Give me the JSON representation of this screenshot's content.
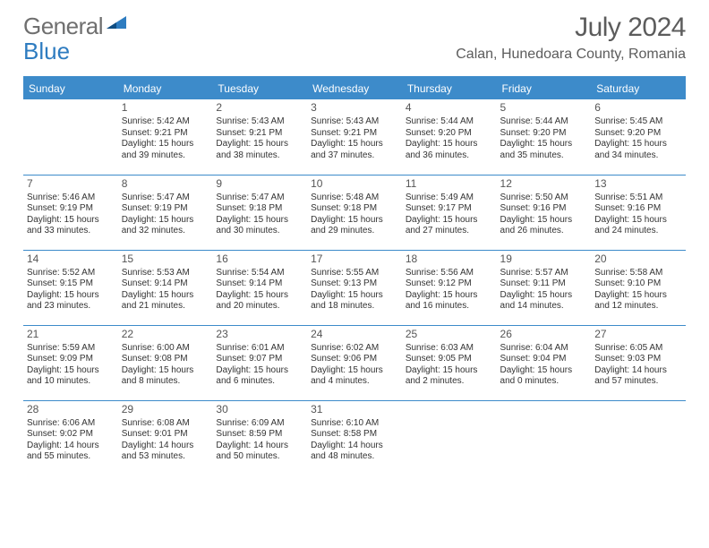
{
  "brand": {
    "part1": "General",
    "part2": "Blue"
  },
  "title": "July 2024",
  "location": "Calan, Hunedoara County, Romania",
  "colors": {
    "accent": "#3d8bca",
    "text": "#333333",
    "muted": "#6f6f6f"
  },
  "daynames": [
    "Sunday",
    "Monday",
    "Tuesday",
    "Wednesday",
    "Thursday",
    "Friday",
    "Saturday"
  ],
  "weeks": [
    [
      null,
      {
        "n": "1",
        "sr": "Sunrise: 5:42 AM",
        "ss": "Sunset: 9:21 PM",
        "d1": "Daylight: 15 hours",
        "d2": "and 39 minutes."
      },
      {
        "n": "2",
        "sr": "Sunrise: 5:43 AM",
        "ss": "Sunset: 9:21 PM",
        "d1": "Daylight: 15 hours",
        "d2": "and 38 minutes."
      },
      {
        "n": "3",
        "sr": "Sunrise: 5:43 AM",
        "ss": "Sunset: 9:21 PM",
        "d1": "Daylight: 15 hours",
        "d2": "and 37 minutes."
      },
      {
        "n": "4",
        "sr": "Sunrise: 5:44 AM",
        "ss": "Sunset: 9:20 PM",
        "d1": "Daylight: 15 hours",
        "d2": "and 36 minutes."
      },
      {
        "n": "5",
        "sr": "Sunrise: 5:44 AM",
        "ss": "Sunset: 9:20 PM",
        "d1": "Daylight: 15 hours",
        "d2": "and 35 minutes."
      },
      {
        "n": "6",
        "sr": "Sunrise: 5:45 AM",
        "ss": "Sunset: 9:20 PM",
        "d1": "Daylight: 15 hours",
        "d2": "and 34 minutes."
      }
    ],
    [
      {
        "n": "7",
        "sr": "Sunrise: 5:46 AM",
        "ss": "Sunset: 9:19 PM",
        "d1": "Daylight: 15 hours",
        "d2": "and 33 minutes."
      },
      {
        "n": "8",
        "sr": "Sunrise: 5:47 AM",
        "ss": "Sunset: 9:19 PM",
        "d1": "Daylight: 15 hours",
        "d2": "and 32 minutes."
      },
      {
        "n": "9",
        "sr": "Sunrise: 5:47 AM",
        "ss": "Sunset: 9:18 PM",
        "d1": "Daylight: 15 hours",
        "d2": "and 30 minutes."
      },
      {
        "n": "10",
        "sr": "Sunrise: 5:48 AM",
        "ss": "Sunset: 9:18 PM",
        "d1": "Daylight: 15 hours",
        "d2": "and 29 minutes."
      },
      {
        "n": "11",
        "sr": "Sunrise: 5:49 AM",
        "ss": "Sunset: 9:17 PM",
        "d1": "Daylight: 15 hours",
        "d2": "and 27 minutes."
      },
      {
        "n": "12",
        "sr": "Sunrise: 5:50 AM",
        "ss": "Sunset: 9:16 PM",
        "d1": "Daylight: 15 hours",
        "d2": "and 26 minutes."
      },
      {
        "n": "13",
        "sr": "Sunrise: 5:51 AM",
        "ss": "Sunset: 9:16 PM",
        "d1": "Daylight: 15 hours",
        "d2": "and 24 minutes."
      }
    ],
    [
      {
        "n": "14",
        "sr": "Sunrise: 5:52 AM",
        "ss": "Sunset: 9:15 PM",
        "d1": "Daylight: 15 hours",
        "d2": "and 23 minutes."
      },
      {
        "n": "15",
        "sr": "Sunrise: 5:53 AM",
        "ss": "Sunset: 9:14 PM",
        "d1": "Daylight: 15 hours",
        "d2": "and 21 minutes."
      },
      {
        "n": "16",
        "sr": "Sunrise: 5:54 AM",
        "ss": "Sunset: 9:14 PM",
        "d1": "Daylight: 15 hours",
        "d2": "and 20 minutes."
      },
      {
        "n": "17",
        "sr": "Sunrise: 5:55 AM",
        "ss": "Sunset: 9:13 PM",
        "d1": "Daylight: 15 hours",
        "d2": "and 18 minutes."
      },
      {
        "n": "18",
        "sr": "Sunrise: 5:56 AM",
        "ss": "Sunset: 9:12 PM",
        "d1": "Daylight: 15 hours",
        "d2": "and 16 minutes."
      },
      {
        "n": "19",
        "sr": "Sunrise: 5:57 AM",
        "ss": "Sunset: 9:11 PM",
        "d1": "Daylight: 15 hours",
        "d2": "and 14 minutes."
      },
      {
        "n": "20",
        "sr": "Sunrise: 5:58 AM",
        "ss": "Sunset: 9:10 PM",
        "d1": "Daylight: 15 hours",
        "d2": "and 12 minutes."
      }
    ],
    [
      {
        "n": "21",
        "sr": "Sunrise: 5:59 AM",
        "ss": "Sunset: 9:09 PM",
        "d1": "Daylight: 15 hours",
        "d2": "and 10 minutes."
      },
      {
        "n": "22",
        "sr": "Sunrise: 6:00 AM",
        "ss": "Sunset: 9:08 PM",
        "d1": "Daylight: 15 hours",
        "d2": "and 8 minutes."
      },
      {
        "n": "23",
        "sr": "Sunrise: 6:01 AM",
        "ss": "Sunset: 9:07 PM",
        "d1": "Daylight: 15 hours",
        "d2": "and 6 minutes."
      },
      {
        "n": "24",
        "sr": "Sunrise: 6:02 AM",
        "ss": "Sunset: 9:06 PM",
        "d1": "Daylight: 15 hours",
        "d2": "and 4 minutes."
      },
      {
        "n": "25",
        "sr": "Sunrise: 6:03 AM",
        "ss": "Sunset: 9:05 PM",
        "d1": "Daylight: 15 hours",
        "d2": "and 2 minutes."
      },
      {
        "n": "26",
        "sr": "Sunrise: 6:04 AM",
        "ss": "Sunset: 9:04 PM",
        "d1": "Daylight: 15 hours",
        "d2": "and 0 minutes."
      },
      {
        "n": "27",
        "sr": "Sunrise: 6:05 AM",
        "ss": "Sunset: 9:03 PM",
        "d1": "Daylight: 14 hours",
        "d2": "and 57 minutes."
      }
    ],
    [
      {
        "n": "28",
        "sr": "Sunrise: 6:06 AM",
        "ss": "Sunset: 9:02 PM",
        "d1": "Daylight: 14 hours",
        "d2": "and 55 minutes."
      },
      {
        "n": "29",
        "sr": "Sunrise: 6:08 AM",
        "ss": "Sunset: 9:01 PM",
        "d1": "Daylight: 14 hours",
        "d2": "and 53 minutes."
      },
      {
        "n": "30",
        "sr": "Sunrise: 6:09 AM",
        "ss": "Sunset: 8:59 PM",
        "d1": "Daylight: 14 hours",
        "d2": "and 50 minutes."
      },
      {
        "n": "31",
        "sr": "Sunrise: 6:10 AM",
        "ss": "Sunset: 8:58 PM",
        "d1": "Daylight: 14 hours",
        "d2": "and 48 minutes."
      },
      null,
      null,
      null
    ]
  ]
}
